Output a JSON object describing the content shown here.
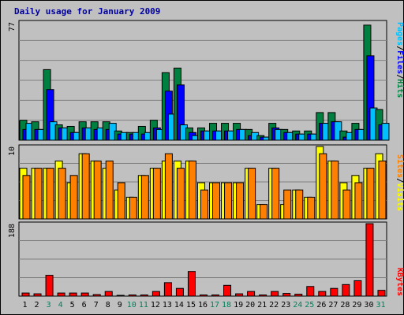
{
  "chart_data": {
    "type": "bar",
    "title": "Daily usage for January 2009",
    "days": [
      "1",
      "2",
      "3",
      "4",
      "5",
      "6",
      "7",
      "8",
      "9",
      "10",
      "11",
      "12",
      "13",
      "14",
      "15",
      "16",
      "17",
      "18",
      "19",
      "20",
      "21",
      "22",
      "23",
      "24",
      "25",
      "26",
      "27",
      "28",
      "29",
      "30",
      "31"
    ],
    "weekend_days": [
      "3",
      "4",
      "10",
      "11",
      "17",
      "18",
      "24",
      "25",
      "31"
    ],
    "panels": [
      {
        "id": "hits_files_pages",
        "ymax_label": "77",
        "ymax": 77,
        "series": [
          {
            "name": "Hits",
            "color": "#008040",
            "values": [
              13,
              12,
              46,
              10,
              9,
              12,
              12,
              12,
              6,
              5,
              9,
              13,
              44,
              47,
              8,
              8,
              11,
              11,
              11,
              7,
              3,
              11,
              7,
              6,
              6,
              18,
              18,
              6,
              11,
              75,
              20
            ]
          },
          {
            "name": "Files",
            "color": "#0000ff",
            "values": [
              7,
              7,
              33,
              8,
              5,
              8,
              7,
              7,
              4,
              4,
              4,
              8,
              32,
              36,
              5,
              6,
              6,
              6,
              7,
              3,
              2,
              8,
              5,
              4,
              4,
              11,
              12,
              2,
              7,
              55,
              10
            ]
          },
          {
            "name": "Pages",
            "color": "#00c0ff",
            "values": [
              11,
              7,
              12,
              8,
              5,
              8,
              8,
              11,
              5,
              5,
              5,
              7,
              17,
              10,
              3,
              6,
              6,
              6,
              7,
              5,
              2,
              7,
              5,
              4,
              4,
              11,
              12,
              5,
              7,
              21,
              11
            ]
          }
        ]
      },
      {
        "id": "visits_sites",
        "ymax_label": "10",
        "ymax": 10,
        "series": [
          {
            "name": "Visits",
            "color": "#ffff00",
            "values": [
              7,
              7,
              7,
              8,
              5,
              9,
              8,
              7,
              4,
              3,
              6,
              7,
              8,
              8,
              8,
              5,
              5,
              5,
              5,
              7,
              2,
              7,
              2,
              4,
              3,
              10,
              8,
              5,
              6,
              7,
              9
            ]
          },
          {
            "name": "Sites",
            "color": "#ff8000",
            "values": [
              6,
              7,
              7,
              7,
              6,
              9,
              8,
              8,
              5,
              3,
              6,
              7,
              9,
              7,
              8,
              4,
              5,
              5,
              5,
              7,
              2,
              7,
              4,
              4,
              3,
              9,
              8,
              4,
              5,
              7,
              8
            ]
          }
        ]
      },
      {
        "id": "kbytes",
        "ymax_label": "188",
        "ymax": 188,
        "series": [
          {
            "name": "KBytes",
            "color": "#ff0000",
            "values": [
              8,
              6,
              54,
              8,
              8,
              8,
              4,
              12,
              2,
              3,
              3,
              12,
              35,
              20,
              64,
              3,
              3,
              28,
              6,
              12,
              3,
              12,
              7,
              5,
              25,
              12,
              20,
              30,
              40,
              188,
              15
            ]
          }
        ]
      }
    ],
    "side_labels": [
      {
        "text": "Pages",
        "color": "#00c0ff"
      },
      {
        "text": "/",
        "color": "#000000"
      },
      {
        "text": "Files",
        "color": "#0000ff"
      },
      {
        "text": "/",
        "color": "#000000"
      },
      {
        "text": "Hits",
        "color": "#008040"
      }
    ],
    "side_labels_2": [
      {
        "text": "Sites",
        "color": "#ff8000"
      },
      {
        "text": "/",
        "color": "#000000"
      },
      {
        "text": "Visits",
        "color": "#ffff00"
      }
    ],
    "side_labels_3": [
      {
        "text": "KBytes",
        "color": "#ff0000"
      }
    ],
    "weekday_tick_color": "#000000",
    "weekend_tick_color": "#00805c",
    "grid": true
  }
}
